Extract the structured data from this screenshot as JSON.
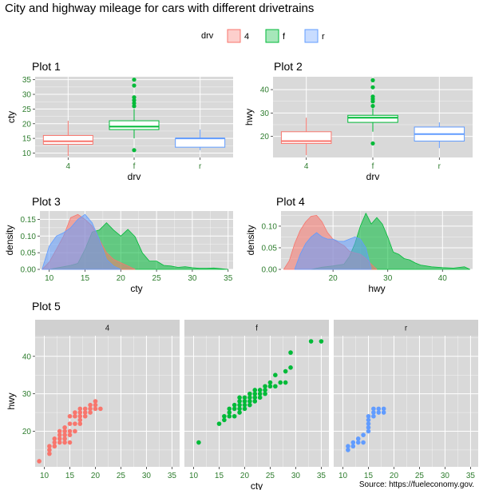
{
  "page": {
    "title": "City and highway mileage for cars with different drivetrains",
    "caption": "Source: https://fueleconomy.gov."
  },
  "legend": {
    "title": "drv",
    "items": [
      {
        "label": "4",
        "color": "#F8766D"
      },
      {
        "label": "f",
        "color": "#00BA38"
      },
      {
        "label": "r",
        "color": "#619CFF"
      }
    ]
  },
  "colors": {
    "panel_bg": "#D9D9D9",
    "grid": "#FFFFFF",
    "strip_bg": "#D0D0D0",
    "tick_text": "#2E7D2E",
    "fill_4": "#F8766D",
    "fill_f": "#00BA38",
    "fill_r": "#619CFF"
  },
  "chart_data": [
    {
      "id": "plot1",
      "title": "Plot 1",
      "type": "box",
      "xlabel": "drv",
      "ylabel": "cty",
      "categories": [
        "4",
        "f",
        "r"
      ],
      "ylim": [
        8.5,
        36
      ],
      "yticks": [
        10,
        15,
        20,
        25,
        30,
        35
      ],
      "boxes": [
        {
          "cat": "4",
          "q1": 13,
          "median": 14,
          "q3": 16,
          "lower": 9,
          "upper": 21,
          "outliers": []
        },
        {
          "cat": "f",
          "q1": 18,
          "median": 19,
          "q3": 21,
          "lower": 15,
          "upper": 25,
          "outliers": [
            11,
            26,
            27,
            28,
            29,
            33,
            35
          ]
        },
        {
          "cat": "r",
          "q1": 12,
          "median": 15,
          "q3": 15,
          "lower": 11,
          "upper": 18,
          "outliers": []
        }
      ]
    },
    {
      "id": "plot2",
      "title": "Plot 2",
      "type": "box",
      "xlabel": "drv",
      "ylabel": "hwy",
      "categories": [
        "4",
        "f",
        "r"
      ],
      "ylim": [
        11,
        45.5
      ],
      "yticks": [
        20,
        30,
        40
      ],
      "boxes": [
        {
          "cat": "4",
          "q1": 17,
          "median": 18,
          "q3": 22,
          "lower": 12,
          "upper": 28,
          "outliers": []
        },
        {
          "cat": "f",
          "q1": 26,
          "median": 28,
          "q3": 29,
          "lower": 22,
          "upper": 32,
          "outliers": [
            17,
            33,
            35,
            36,
            37,
            41,
            44
          ]
        },
        {
          "cat": "r",
          "q1": 18,
          "median": 21,
          "q3": 24,
          "lower": 15,
          "upper": 26,
          "outliers": []
        }
      ]
    },
    {
      "id": "plot3",
      "title": "Plot 3",
      "type": "area",
      "xlabel": "cty",
      "ylabel": "density",
      "xlim": [
        8.7,
        35.7
      ],
      "ylim": [
        0,
        0.175
      ],
      "xticks": [
        10,
        15,
        20,
        25,
        30,
        35
      ],
      "yticks": [
        0.0,
        0.05,
        0.1,
        0.15
      ],
      "ytick_labels": [
        "0.00",
        "0.05",
        "0.10",
        "0.15"
      ],
      "series": [
        {
          "name": "f",
          "x": [
            10,
            11,
            12,
            13,
            14,
            15,
            16,
            17,
            18,
            19,
            20,
            21,
            22,
            23,
            24,
            25,
            26,
            27,
            28,
            29,
            30,
            31,
            32,
            33,
            34,
            35
          ],
          "y": [
            0.0,
            0.004,
            0.008,
            0.012,
            0.018,
            0.06,
            0.112,
            0.118,
            0.14,
            0.118,
            0.1,
            0.12,
            0.098,
            0.05,
            0.025,
            0.025,
            0.012,
            0.01,
            0.006,
            0.008,
            0.005,
            0.003,
            0.003,
            0.004,
            0.002,
            0.0
          ]
        },
        {
          "name": "4",
          "x": [
            9,
            10,
            11,
            12,
            13,
            14,
            15,
            16,
            17,
            18,
            19,
            20,
            21,
            22
          ],
          "y": [
            0.0,
            0.022,
            0.06,
            0.1,
            0.155,
            0.165,
            0.15,
            0.13,
            0.09,
            0.05,
            0.03,
            0.02,
            0.01,
            0.0
          ]
        },
        {
          "name": "r",
          "x": [
            9,
            10,
            11,
            12,
            13,
            14,
            15,
            16,
            17,
            18,
            19,
            20
          ],
          "y": [
            0.0,
            0.07,
            0.1,
            0.11,
            0.125,
            0.15,
            0.165,
            0.14,
            0.09,
            0.03,
            0.01,
            0.0
          ]
        }
      ]
    },
    {
      "id": "plot4",
      "title": "Plot 4",
      "type": "area",
      "xlabel": "hwy",
      "ylabel": "density",
      "xlim": [
        10.5,
        45.5
      ],
      "ylim": [
        0,
        0.135
      ],
      "xticks": [
        20,
        30,
        40
      ],
      "yticks": [
        0.0,
        0.05,
        0.1
      ],
      "ytick_labels": [
        "0.00",
        "0.05",
        "0.10"
      ],
      "series": [
        {
          "name": "f",
          "x": [
            16,
            18,
            20,
            22,
            23,
            24,
            25,
            26,
            27,
            28,
            29,
            30,
            31,
            32,
            33,
            34,
            35,
            36,
            37,
            38,
            40,
            42,
            44,
            45
          ],
          "y": [
            0.0,
            0.005,
            0.008,
            0.012,
            0.03,
            0.06,
            0.1,
            0.13,
            0.105,
            0.12,
            0.105,
            0.075,
            0.04,
            0.035,
            0.025,
            0.022,
            0.015,
            0.01,
            0.008,
            0.006,
            0.004,
            0.003,
            0.006,
            0.0
          ]
        },
        {
          "name": "4",
          "x": [
            11,
            12,
            13,
            14,
            15,
            16,
            17,
            18,
            19,
            20,
            21,
            22,
            23,
            24,
            25,
            26,
            27,
            28
          ],
          "y": [
            0.0,
            0.02,
            0.06,
            0.09,
            0.11,
            0.123,
            0.125,
            0.11,
            0.085,
            0.07,
            0.062,
            0.055,
            0.042,
            0.038,
            0.035,
            0.025,
            0.012,
            0.0
          ]
        },
        {
          "name": "r",
          "x": [
            13,
            14,
            15,
            16,
            17,
            18,
            19,
            20,
            21,
            22,
            23,
            24,
            25,
            26,
            27
          ],
          "y": [
            0.0,
            0.035,
            0.06,
            0.075,
            0.085,
            0.075,
            0.07,
            0.07,
            0.065,
            0.065,
            0.07,
            0.075,
            0.07,
            0.05,
            0.0
          ]
        }
      ]
    },
    {
      "id": "plot5",
      "title": "Plot 5",
      "type": "scatter",
      "xlabel": "cty",
      "ylabel": "hwy",
      "xlim": [
        8.2,
        36.5
      ],
      "ylim": [
        10.5,
        45.5
      ],
      "xticks": [
        10,
        15,
        20,
        25,
        30,
        35
      ],
      "yticks": [
        20,
        30,
        40
      ],
      "facets": [
        {
          "strip": "4",
          "color": "#F8766D",
          "points": [
            [
              9,
              12
            ],
            [
              11,
              14
            ],
            [
              11,
              15
            ],
            [
              11,
              16
            ],
            [
              12,
              16
            ],
            [
              12,
              17
            ],
            [
              13,
              17
            ],
            [
              13,
              18
            ],
            [
              13,
              19
            ],
            [
              14,
              17
            ],
            [
              14,
              18
            ],
            [
              14,
              19
            ],
            [
              14,
              20
            ],
            [
              15,
              17
            ],
            [
              15,
              19
            ],
            [
              15,
              20
            ],
            [
              15,
              22
            ],
            [
              15,
              24
            ],
            [
              16,
              20
            ],
            [
              16,
              22
            ],
            [
              16,
              24
            ],
            [
              16,
              25
            ],
            [
              17,
              22
            ],
            [
              17,
              23
            ],
            [
              17,
              24
            ],
            [
              17,
              25
            ],
            [
              17,
              26
            ],
            [
              18,
              24
            ],
            [
              18,
              25
            ],
            [
              18,
              26
            ],
            [
              19,
              25
            ],
            [
              19,
              26
            ],
            [
              19,
              27
            ],
            [
              20,
              26
            ],
            [
              20,
              27
            ],
            [
              20,
              28
            ],
            [
              21,
              26
            ],
            [
              12,
              18
            ],
            [
              13,
              20
            ],
            [
              14,
              21
            ]
          ]
        },
        {
          "strip": "f",
          "color": "#00BA38",
          "points": [
            [
              11,
              17
            ],
            [
              15,
              22
            ],
            [
              16,
              23
            ],
            [
              16,
              24
            ],
            [
              17,
              24
            ],
            [
              17,
              25
            ],
            [
              17,
              26
            ],
            [
              18,
              24
            ],
            [
              18,
              26
            ],
            [
              18,
              27
            ],
            [
              19,
              25
            ],
            [
              19,
              26
            ],
            [
              19,
              27
            ],
            [
              19,
              28
            ],
            [
              19,
              29
            ],
            [
              20,
              26
            ],
            [
              20,
              27
            ],
            [
              20,
              28
            ],
            [
              20,
              29
            ],
            [
              21,
              27
            ],
            [
              21,
              28
            ],
            [
              21,
              29
            ],
            [
              21,
              30
            ],
            [
              22,
              28
            ],
            [
              22,
              29
            ],
            [
              22,
              30
            ],
            [
              22,
              31
            ],
            [
              23,
              29
            ],
            [
              23,
              30
            ],
            [
              23,
              31
            ],
            [
              24,
              30
            ],
            [
              24,
              31
            ],
            [
              24,
              32
            ],
            [
              25,
              32
            ],
            [
              25,
              33
            ],
            [
              26,
              32
            ],
            [
              26,
              35
            ],
            [
              27,
              33
            ],
            [
              28,
              33
            ],
            [
              28,
              36
            ],
            [
              29,
              37
            ],
            [
              29,
              41
            ],
            [
              33,
              44
            ],
            [
              35,
              44
            ]
          ]
        },
        {
          "strip": "r",
          "color": "#619CFF",
          "points": [
            [
              11,
              15
            ],
            [
              11,
              16
            ],
            [
              12,
              16
            ],
            [
              12,
              17
            ],
            [
              13,
              17
            ],
            [
              13,
              18
            ],
            [
              14,
              17
            ],
            [
              14,
              19
            ],
            [
              15,
              20
            ],
            [
              15,
              21
            ],
            [
              15,
              22
            ],
            [
              15,
              23
            ],
            [
              15,
              24
            ],
            [
              16,
              24
            ],
            [
              16,
              25
            ],
            [
              17,
              25
            ],
            [
              17,
              26
            ],
            [
              18,
              25
            ],
            [
              18,
              26
            ],
            [
              16,
              26
            ]
          ]
        }
      ]
    }
  ]
}
